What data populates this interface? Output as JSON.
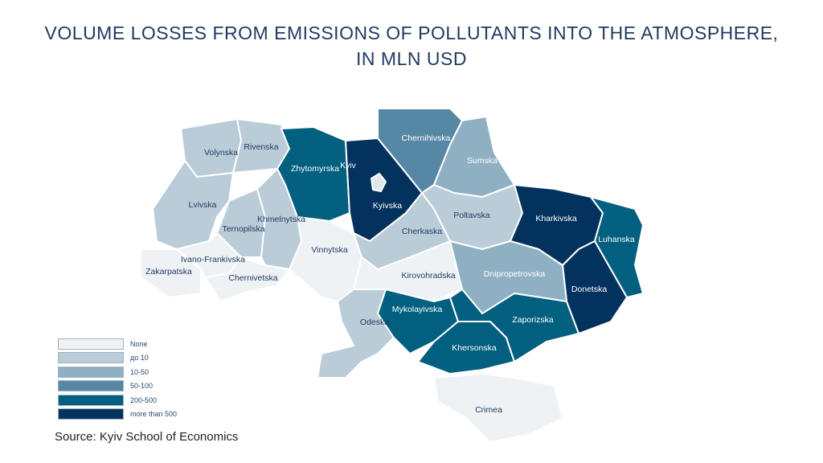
{
  "title_line1": "VOLUME LOSSES FROM EMISSIONS OF POLLUTANTS INTO THE ATMOSPHERE,",
  "title_line2": "IN MLN USD",
  "source": "Source: Kyiv School of Economics",
  "legend": [
    {
      "label": "None",
      "color": "#eef2f5"
    },
    {
      "label": "до 10",
      "color": "#b9ccd8"
    },
    {
      "label": "10-50",
      "color": "#8fb0c3"
    },
    {
      "label": "50-100",
      "color": "#5688a4"
    },
    {
      "label": "200-500",
      "color": "#015f7f"
    },
    {
      "label": "more than 500",
      "color": "#03325e"
    }
  ],
  "regions": [
    {
      "name": "Volynska",
      "class": 1
    },
    {
      "name": "Rivenska",
      "class": 1
    },
    {
      "name": "Zhytomyrska",
      "class": 4
    },
    {
      "name": "Kyivska",
      "class": 5
    },
    {
      "name": "Chernihivska",
      "class": 3
    },
    {
      "name": "Sumska",
      "class": 2
    },
    {
      "name": "Lvivska",
      "class": 1
    },
    {
      "name": "Ternopilska",
      "class": 1
    },
    {
      "name": "Khmelnytska",
      "class": 1
    },
    {
      "name": "Zakarpatska",
      "class": 0
    },
    {
      "name": "Ivano-Frankivska",
      "class": 0
    },
    {
      "name": "Chernivetska",
      "class": 0
    },
    {
      "name": "Vinnytska",
      "class": 0
    },
    {
      "name": "Cherkaska",
      "class": 1
    },
    {
      "name": "Poltavska",
      "class": 1
    },
    {
      "name": "Kharkivska",
      "class": 5
    },
    {
      "name": "Luhanska",
      "class": 4
    },
    {
      "name": "Donetska",
      "class": 5
    },
    {
      "name": "Dnipropetrovska",
      "class": 2
    },
    {
      "name": "Kirovohradska",
      "class": 0
    },
    {
      "name": "Odeska",
      "class": 1
    },
    {
      "name": "Mykolayivska",
      "class": 4
    },
    {
      "name": "Khersonska",
      "class": 4
    },
    {
      "name": "Zaporizska",
      "class": 4
    },
    {
      "name": "Crimea",
      "class": 0
    },
    {
      "name": "Kyiv",
      "class": 5
    }
  ]
}
